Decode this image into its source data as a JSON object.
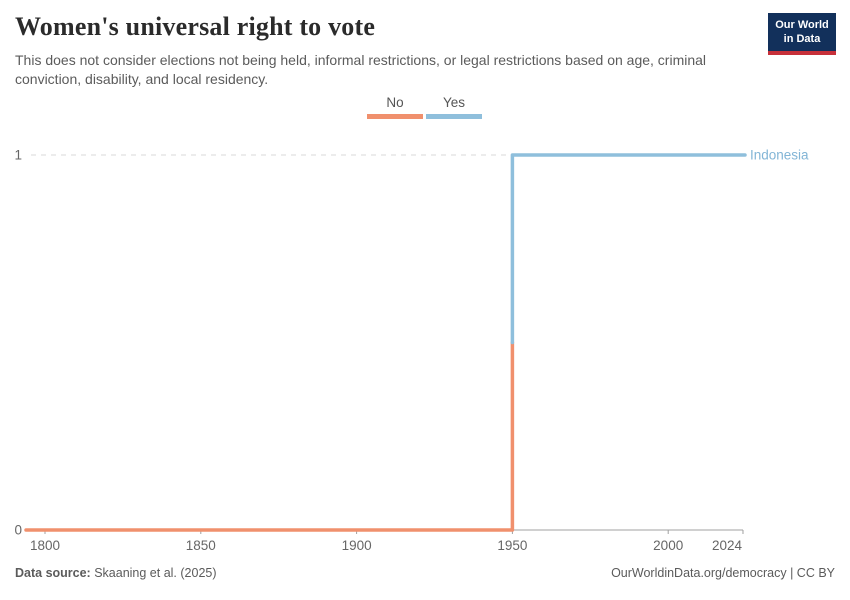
{
  "header": {
    "title": "Women's universal right to vote",
    "subtitle": "This does not consider elections not being held, informal restrictions, or legal restrictions based on age, criminal conviction, disability, and local residency.",
    "logo": {
      "line1": "Our World",
      "line2": "in Data",
      "bg_color": "#12305b",
      "accent_color": "#c7303a"
    }
  },
  "legend": {
    "items": [
      {
        "label": "No",
        "color": "#f0906d"
      },
      {
        "label": "Yes",
        "color": "#8fbfdc"
      }
    ]
  },
  "chart_data": {
    "type": "line",
    "variant": "step",
    "title": "Women's universal right to vote",
    "entity": "Indonesia",
    "x_ticks": [
      1800,
      1850,
      1900,
      1950,
      2000,
      2024
    ],
    "y_ticks": [
      0,
      1
    ],
    "x_range": [
      1800,
      2024
    ],
    "y_range": [
      0,
      1
    ],
    "transition_year": 1950,
    "series": [
      {
        "name": "Indonesia",
        "segments": [
          {
            "from": 1800,
            "to": 1950,
            "value": 0,
            "label": "No",
            "color": "#f0906d"
          },
          {
            "from": 1950,
            "to": 2024,
            "value": 1,
            "label": "Yes",
            "color": "#8fbfdc"
          }
        ]
      }
    ],
    "end_label": {
      "text": "Indonesia",
      "color": "#82b5d6"
    },
    "grid": "dashed horizontal line at y=1",
    "legend_position": "top-center",
    "axis_color": "#a0a0a0",
    "grid_color": "#dadada",
    "tick_label_color": "#666666"
  },
  "footer": {
    "source_label": "Data source:",
    "source_value": " Skaaning et al. (2025)",
    "credit": "OurWorldinData.org/democracy | CC BY"
  }
}
